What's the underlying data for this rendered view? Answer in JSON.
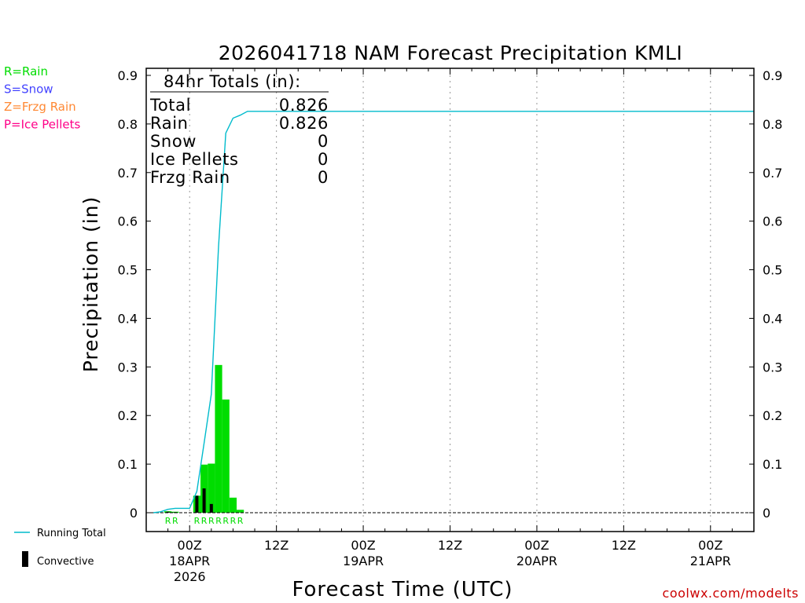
{
  "chart_data": {
    "type": "bar",
    "title": "2026041718 NAM Forecast Precipitation KMLI",
    "xlabel": "Forecast Time (UTC)",
    "ylabel": "Precipitation (in)",
    "ylim": [
      0,
      0.9
    ],
    "xlim_hours": [
      -6,
      78
    ],
    "bar_width_hours": 1,
    "y_ticks": [
      "0",
      "0.1",
      "0.2",
      "0.3",
      "0.4",
      "0.5",
      "0.6",
      "0.7",
      "0.8",
      "0.9"
    ],
    "y_tick_values": [
      0,
      0.1,
      0.2,
      0.3,
      0.4,
      0.5,
      0.6,
      0.7,
      0.8,
      0.9
    ],
    "x_ticks": [
      {
        "hour": 0,
        "line1": "00Z",
        "line2": "18APR",
        "line3": "2026"
      },
      {
        "hour": 12,
        "line1": "12Z",
        "line2": "",
        "line3": ""
      },
      {
        "hour": 24,
        "line1": "00Z",
        "line2": "19APR",
        "line3": ""
      },
      {
        "hour": 36,
        "line1": "12Z",
        "line2": "",
        "line3": ""
      },
      {
        "hour": 48,
        "line1": "00Z",
        "line2": "20APR",
        "line3": ""
      },
      {
        "hour": 60,
        "line1": "12Z",
        "line2": "",
        "line3": ""
      },
      {
        "hour": 72,
        "line1": "00Z",
        "line2": "21APR",
        "line3": ""
      }
    ],
    "rain_bars": [
      {
        "hour": -3,
        "value": 0.003
      },
      {
        "hour": -2,
        "value": 0.002
      },
      {
        "hour": 1,
        "value": 0.035
      },
      {
        "hour": 2,
        "value": 0.099
      },
      {
        "hour": 3,
        "value": 0.101
      },
      {
        "hour": 4,
        "value": 0.304
      },
      {
        "hour": 5,
        "value": 0.233
      },
      {
        "hour": 6,
        "value": 0.031
      },
      {
        "hour": 7,
        "value": 0.006
      }
    ],
    "convective_bars": [
      {
        "hour": -3,
        "value": 0.002
      },
      {
        "hour": -2,
        "value": 0.001
      },
      {
        "hour": 1,
        "value": 0.035
      },
      {
        "hour": 2,
        "value": 0.05
      },
      {
        "hour": 3,
        "value": 0.018
      }
    ],
    "running_total": {
      "hours": [
        -5,
        -4,
        -3,
        -2,
        -1,
        0,
        1,
        2,
        3,
        4,
        5,
        6,
        7,
        8,
        78
      ],
      "values": [
        0,
        0.002,
        0.007,
        0.009,
        0.009,
        0.009,
        0.044,
        0.143,
        0.244,
        0.548,
        0.781,
        0.812,
        0.818,
        0.826,
        0.826
      ]
    },
    "precip_type_labels": {
      "text": "R",
      "hours": [
        -3,
        -2,
        1,
        2,
        3,
        4,
        5,
        6,
        7
      ]
    },
    "colors": {
      "rain": "#00dd00",
      "snow": "#4444ff",
      "frzg_rain": "#ff8833",
      "ice_pellets": "#ff0088",
      "running_total": "#00bbcc",
      "convective": "#000000",
      "grid": "#999999",
      "watermark": "#cc0000"
    }
  },
  "totals": {
    "heading": "84hr Totals (in):",
    "rows": [
      {
        "label": "Total",
        "value": "0.826"
      },
      {
        "label": "Rain",
        "value": "0.826"
      },
      {
        "label": "Snow",
        "value": "0"
      },
      {
        "label": "Ice Pellets",
        "value": "0"
      },
      {
        "label": "Frzg Rain",
        "value": "0"
      }
    ]
  },
  "legend_types": [
    {
      "text": "R=Rain",
      "color": "#00dd00"
    },
    {
      "text": "S=Snow",
      "color": "#4444ff"
    },
    {
      "text": "Z=Frzg Rain",
      "color": "#ff8833"
    },
    {
      "text": "P=Ice Pellets",
      "color": "#ff0088"
    }
  ],
  "legend_series": {
    "running_total": "Running Total",
    "convective": "Convective"
  },
  "watermark": "coolwx.com/modelts"
}
